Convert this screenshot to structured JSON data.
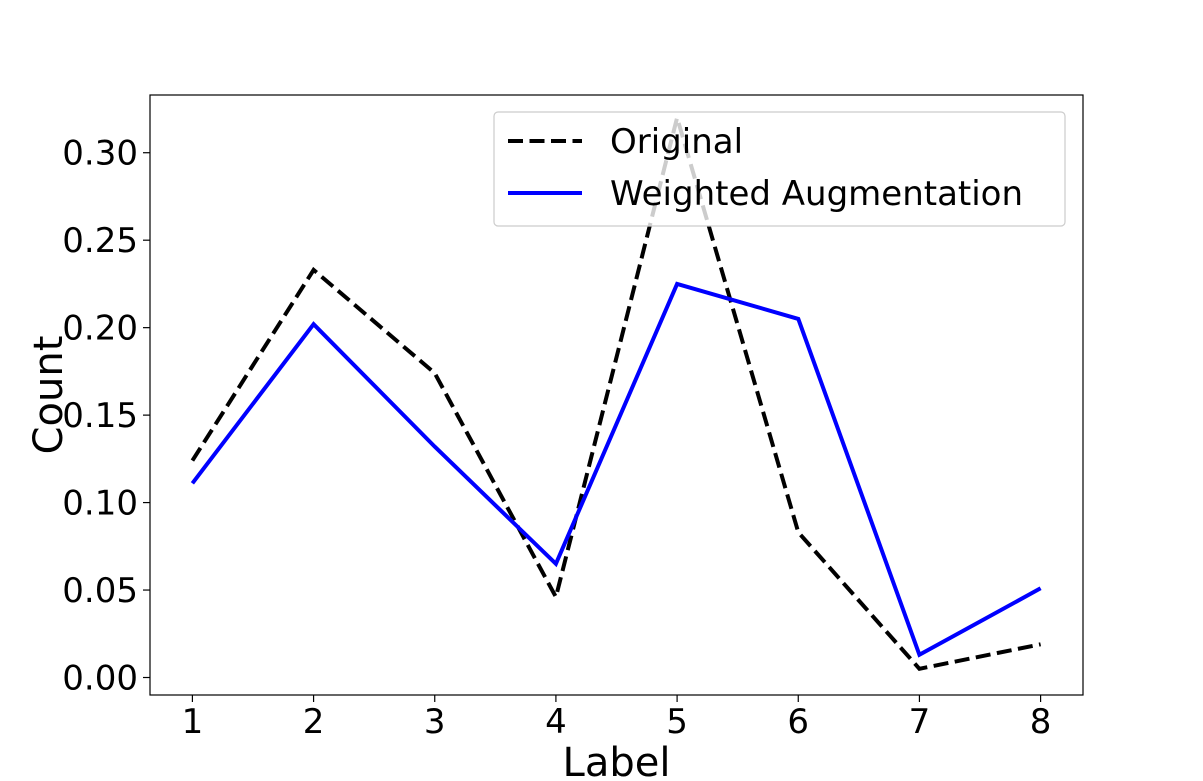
{
  "chart_data": {
    "type": "line",
    "title": "",
    "xlabel": "Label",
    "ylabel": "Count",
    "x": [
      1,
      2,
      3,
      4,
      5,
      6,
      7,
      8
    ],
    "xticks": [
      "1",
      "2",
      "3",
      "4",
      "5",
      "6",
      "7",
      "8"
    ],
    "yticks": [
      "0.00",
      "0.05",
      "0.10",
      "0.15",
      "0.20",
      "0.25",
      "0.30"
    ],
    "xlim": [
      0.65,
      8.35
    ],
    "ylim": [
      -0.01,
      0.333
    ],
    "grid": false,
    "legend_position": "top-right",
    "series": [
      {
        "name": "Original",
        "values": [
          0.124,
          0.233,
          0.174,
          0.046,
          0.32,
          0.083,
          0.005,
          0.019
        ],
        "color": "#000000",
        "style": "dashed"
      },
      {
        "name": "Weighted Augmentation",
        "values": [
          0.111,
          0.202,
          0.132,
          0.065,
          0.225,
          0.205,
          0.013,
          0.051
        ],
        "color": "#0000ff",
        "style": "solid"
      }
    ]
  }
}
